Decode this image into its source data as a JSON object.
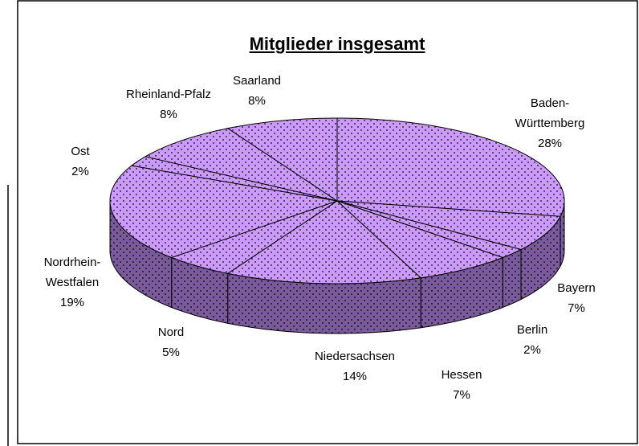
{
  "chart_data": {
    "type": "pie",
    "title": "Mitglieder insgesamt",
    "categories": [
      "Baden-Württemberg",
      "Bayern",
      "Berlin",
      "Hessen",
      "Niedersachsen",
      "Nord",
      "Nordrhein-Westfalen",
      "Ost",
      "Rheinland-Pfalz",
      "Saarland"
    ],
    "values": [
      28,
      7,
      2,
      7,
      14,
      5,
      19,
      2,
      8,
      8
    ],
    "value_labels": [
      "28%",
      "7%",
      "2%",
      "7%",
      "14%",
      "5%",
      "19%",
      "2%",
      "8%",
      "8%"
    ],
    "color": "#cc99ff"
  }
}
